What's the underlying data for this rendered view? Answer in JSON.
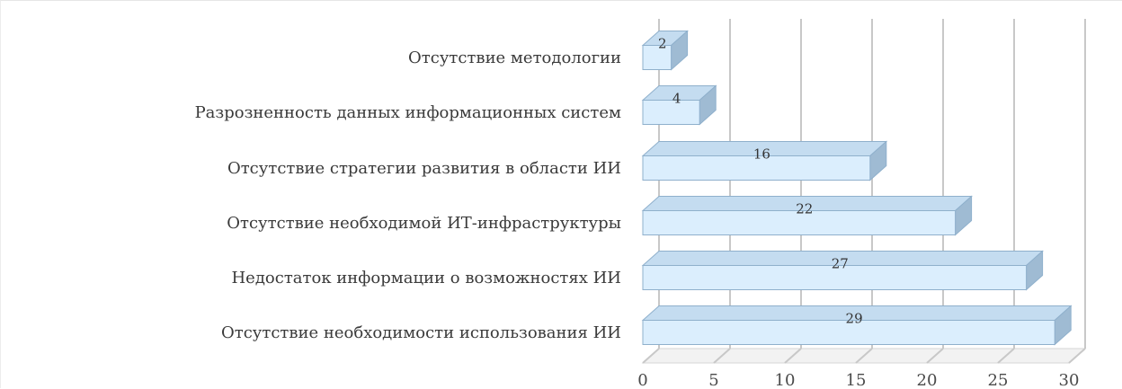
{
  "chart_data": {
    "type": "bar",
    "orientation": "horizontal",
    "style": "3d",
    "categories": [
      "Отсутствие методологии",
      "Разрозненность данных информационных систем",
      "Отсутствие стратегии развития в области ИИ",
      "Отсутствие необходимой ИТ-инфраструктуры",
      "Недостаток информации о возможностях ИИ",
      "Отсутствие необходимости использования ИИ"
    ],
    "values": [
      2,
      4,
      16,
      22,
      27,
      29
    ],
    "xlim": [
      0,
      30
    ],
    "xticks": [
      0,
      5,
      10,
      15,
      20,
      25,
      30
    ],
    "grid": true,
    "legend": "none",
    "title": "",
    "xlabel": "",
    "ylabel": "",
    "colors": {
      "bar_front": "#dbeefd",
      "bar_top": "#c4dcf0",
      "bar_side": "#9fbbd3",
      "bar_stroke": "#8fb0cc",
      "grid": "#c8c8c8",
      "floor": "#d6d6d6",
      "label": "#3a3a3a"
    }
  }
}
